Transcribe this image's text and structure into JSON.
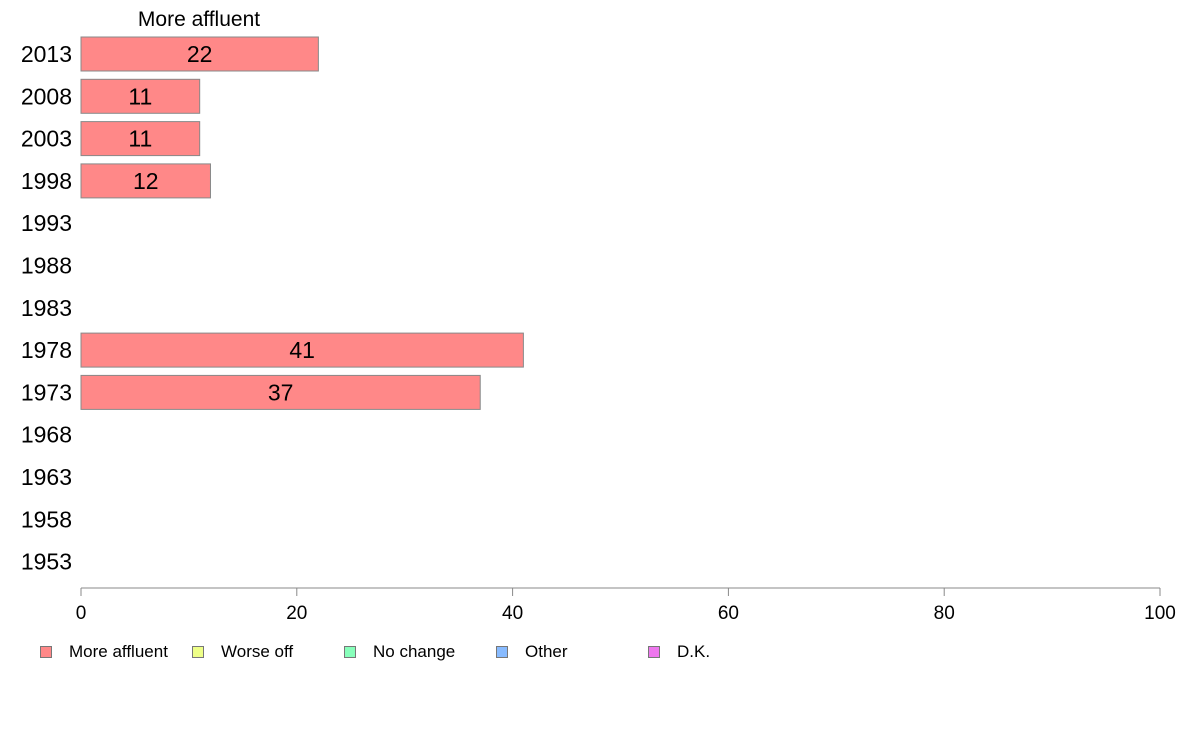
{
  "chart_data": {
    "type": "bar",
    "orientation": "horizontal",
    "title": "More affluent",
    "categories": [
      "2013",
      "2008",
      "2003",
      "1998",
      "1993",
      "1988",
      "1983",
      "1978",
      "1973",
      "1968",
      "1963",
      "1958",
      "1953"
    ],
    "series": [
      {
        "name": "More affluent",
        "color": "#ff8888",
        "values": [
          22,
          11,
          11,
          12,
          null,
          null,
          null,
          41,
          37,
          null,
          null,
          null,
          null
        ]
      }
    ],
    "xlim": [
      0,
      100
    ],
    "xticks": [
      0,
      20,
      40,
      60,
      80,
      100
    ],
    "grid": false,
    "legend": {
      "placement": "bottom",
      "items": [
        {
          "label": "More affluent",
          "color": "#ff8888"
        },
        {
          "label": "Worse off",
          "color": "#eeff88"
        },
        {
          "label": "No change",
          "color": "#88ffbb"
        },
        {
          "label": "Other",
          "color": "#88bbff"
        },
        {
          "label": "D.K.",
          "color": "#ee77ee"
        }
      ]
    }
  }
}
